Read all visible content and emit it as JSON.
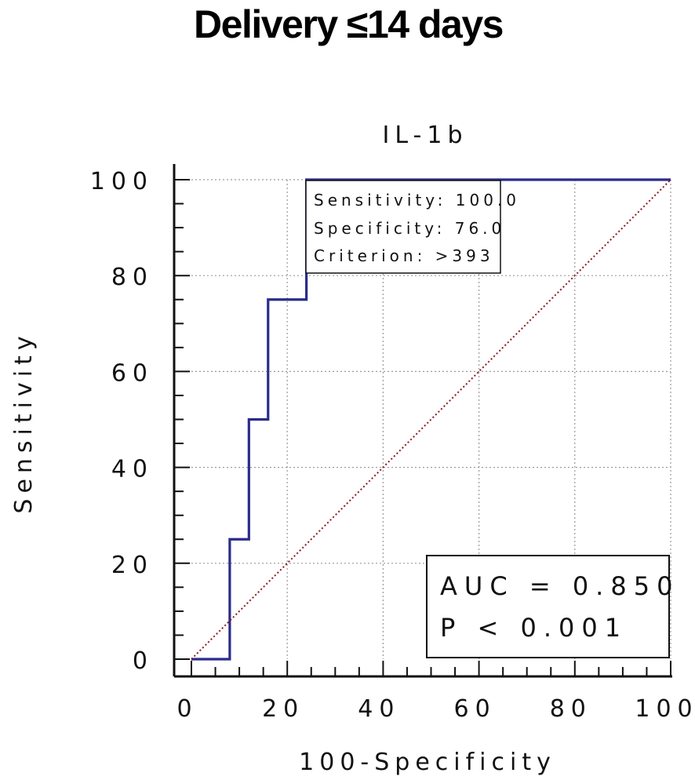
{
  "figure_title": "Delivery ≤14 days",
  "chart_data": {
    "type": "line",
    "title": "IL-1b",
    "xlabel": "100-Specificity",
    "ylabel": "Sensitivity",
    "xlim": [
      0,
      100
    ],
    "ylim": [
      0,
      100
    ],
    "x_ticks": [
      0,
      20,
      40,
      60,
      80,
      100
    ],
    "y_ticks": [
      0,
      20,
      40,
      60,
      80,
      100
    ],
    "grid": true,
    "series": [
      {
        "style": "step",
        "color": "#2b2b8c",
        "x": [
          0,
          8,
          8,
          12,
          12,
          16,
          16,
          24,
          24,
          100
        ],
        "y": [
          0,
          0,
          25,
          25,
          50,
          50,
          75,
          75,
          100,
          100
        ]
      },
      {
        "style": "dotted",
        "color": "#8b1a1a",
        "x": [
          0,
          100
        ],
        "y": [
          0,
          100
        ]
      }
    ],
    "annotations": {
      "criterion_box": [
        "Sensitivity: 100.0",
        "Specificity: 76.0",
        "Criterion: >393"
      ],
      "auc_box": [
        "AUC = 0.850",
        "P < 0.001"
      ]
    }
  }
}
